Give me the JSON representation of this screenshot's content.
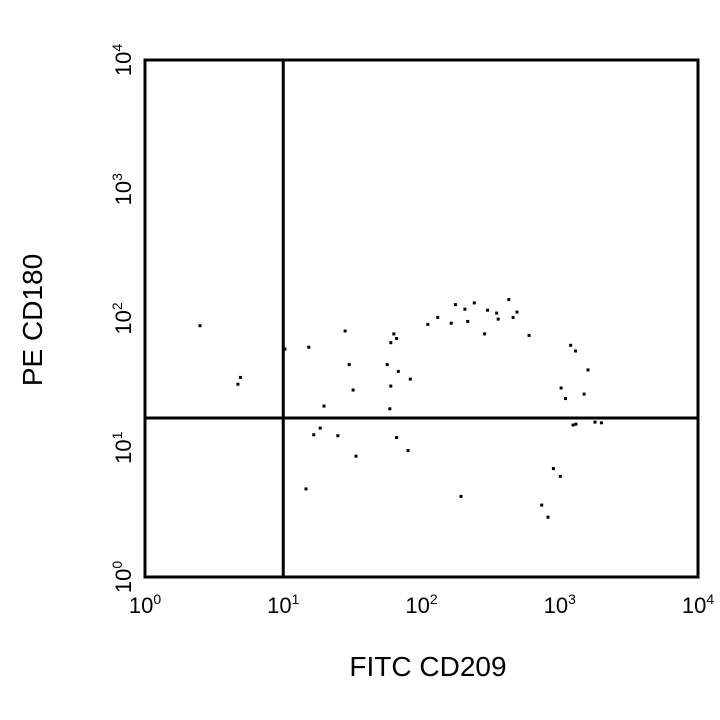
{
  "chart_data": {
    "type": "scatter",
    "xlabel": "FITC CD209",
    "ylabel": "PE CD180",
    "xscale": "log",
    "yscale": "log",
    "xlim": [
      1,
      10000
    ],
    "ylim": [
      1,
      10000
    ],
    "x_ticks": [
      {
        "base": "10",
        "exp": "0"
      },
      {
        "base": "10",
        "exp": "1"
      },
      {
        "base": "10",
        "exp": "2"
      },
      {
        "base": "10",
        "exp": "3"
      },
      {
        "base": "10",
        "exp": "4"
      }
    ],
    "y_ticks": [
      {
        "base": "10",
        "exp": "0"
      },
      {
        "base": "10",
        "exp": "1"
      },
      {
        "base": "10",
        "exp": "2"
      },
      {
        "base": "10",
        "exp": "3"
      },
      {
        "base": "10",
        "exp": "4"
      }
    ],
    "quadrant_gates": {
      "x": 10,
      "y": 17
    },
    "grid": false,
    "point_color": "#000000",
    "points": [
      [
        2.5,
        88
      ],
      [
        4.9,
        35
      ],
      [
        4.7,
        31
      ],
      [
        10.3,
        58
      ],
      [
        15.3,
        60
      ],
      [
        18.5,
        14.2
      ],
      [
        16.6,
        12.6
      ],
      [
        19.7,
        21
      ],
      [
        14.6,
        4.8
      ],
      [
        24.8,
        12.4
      ],
      [
        28,
        80
      ],
      [
        30,
        44
      ],
      [
        32,
        28
      ],
      [
        33.6,
        8.6
      ],
      [
        60,
        30
      ],
      [
        60,
        65
      ],
      [
        63,
        76
      ],
      [
        66,
        70
      ],
      [
        56.5,
        44
      ],
      [
        59,
        20
      ],
      [
        68,
        39
      ],
      [
        66,
        12
      ],
      [
        80,
        9.5
      ],
      [
        83,
        34
      ],
      [
        111,
        90
      ],
      [
        131,
        102
      ],
      [
        164,
        92
      ],
      [
        176,
        128
      ],
      [
        193,
        4.2
      ],
      [
        206,
        118
      ],
      [
        216,
        95
      ],
      [
        241,
        132
      ],
      [
        300,
        116
      ],
      [
        286,
        76
      ],
      [
        350,
        110
      ],
      [
        359,
        99
      ],
      [
        428,
        140
      ],
      [
        460,
        102
      ],
      [
        491,
        112
      ],
      [
        600,
        74
      ],
      [
        740,
        3.6
      ],
      [
        822,
        2.9
      ],
      [
        1022,
        29
      ],
      [
        1100,
        24
      ],
      [
        1250,
        15
      ],
      [
        1308,
        15.2
      ],
      [
        1200,
        62
      ],
      [
        1300,
        56
      ],
      [
        1500,
        26
      ],
      [
        1800,
        15.8
      ],
      [
        2000,
        15.6
      ],
      [
        1600,
        40
      ],
      [
        900,
        6.9
      ],
      [
        1010,
        6
      ]
    ]
  }
}
